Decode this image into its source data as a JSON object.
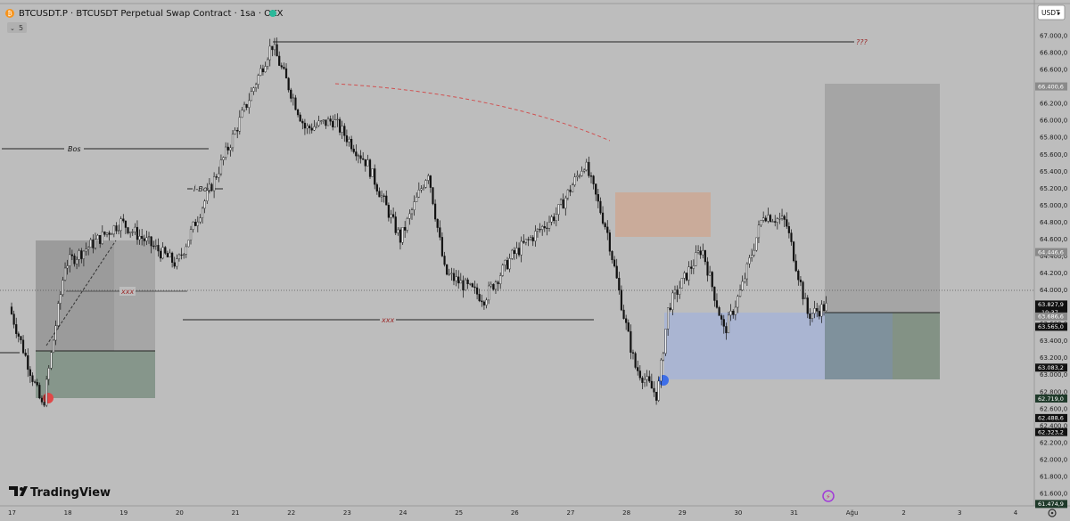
{
  "header": {
    "title": "BTCUSDT.P · BTCUSDT Perpetual Swap Contract · 1sa · OKX",
    "indicator_count": "5",
    "currency_button": "USDT",
    "logo": "TradingView"
  },
  "colors": {
    "background": "#bdbdbd",
    "candle": "#111111",
    "blue_zone": "#a9b4d3",
    "orange_zone": "#caa995",
    "green_zone": "#7f8f82",
    "gray_zone": "#a2a2a2",
    "annotation_red": "#9c2a2a"
  },
  "chart_data": {
    "type": "candlestick",
    "symbol": "BTCUSDT.P",
    "title": "BTCUSDT.P · BTCUSDT Perpetual Swap Contract · 1sa · OKX",
    "ylim": [
      61400,
      67200
    ],
    "x_categories": [
      "17",
      "18",
      "19",
      "20",
      "21",
      "22",
      "23",
      "24",
      "25",
      "26",
      "27",
      "28",
      "29",
      "30",
      "31",
      "Ağu",
      "2",
      "3",
      "4"
    ],
    "y_ticks": [
      "67.000,0",
      "66.800,0",
      "66.600,0",
      "66.400,0",
      "66.200,0",
      "66.000,0",
      "65.800,0",
      "65.600,0",
      "65.400,0",
      "65.200,0",
      "65.000,0",
      "64.800,0",
      "64.600,0",
      "64.400,0",
      "64.200,0",
      "64.000,0",
      "63.800,0",
      "63.600,0",
      "63.400,0",
      "63.200,0",
      "63.000,0",
      "62.800,0",
      "62.600,0",
      "62.400,0",
      "62.200,0",
      "62.000,0",
      "61.800,0",
      "61.600,0",
      "61.400,0"
    ],
    "price_badges": [
      {
        "label": "66.400,6",
        "value": 66400.6,
        "color": "#8a8a8a"
      },
      {
        "label": "64.446,6",
        "value": 64446.6,
        "color": "#8a8a8a"
      },
      {
        "label": "63.827,9",
        "value": 63827.9,
        "color": "#111111",
        "sub": "19:37"
      },
      {
        "label": "63.686,6",
        "value": 63686.6,
        "color": "#8a8a8a"
      },
      {
        "label": "63.565,0",
        "value": 63565.0,
        "color": "#111111"
      },
      {
        "label": "63.083,2",
        "value": 63083.2,
        "color": "#111111"
      },
      {
        "label": "62.719,0",
        "value": 62719.0,
        "color": "#1f3a2a"
      },
      {
        "label": "62.488,6",
        "value": 62488.6,
        "color": "#111111"
      },
      {
        "label": "62.323,2",
        "value": 62323.2,
        "color": "#111111"
      },
      {
        "label": "61.474,9",
        "value": 61474.9,
        "color": "#1f3a2a"
      }
    ],
    "annotations": [
      "Bos",
      "İ-Bos",
      "xxx",
      "xxx",
      "???"
    ],
    "key_points": [
      {
        "x": "17",
        "price": 63800
      },
      {
        "x": "17.6",
        "price": 62600
      },
      {
        "x": "18",
        "price": 64300
      },
      {
        "x": "19",
        "price": 64800
      },
      {
        "x": "20",
        "price": 64300
      },
      {
        "x": "21",
        "price": 65800
      },
      {
        "x": "21.7",
        "price": 66900
      },
      {
        "x": "22.3",
        "price": 65900
      },
      {
        "x": "22.8",
        "price": 66000
      },
      {
        "x": "23.4",
        "price": 65500
      },
      {
        "x": "24",
        "price": 64600
      },
      {
        "x": "24.5",
        "price": 65400
      },
      {
        "x": "24.8",
        "price": 64200
      },
      {
        "x": "25.5",
        "price": 63900
      },
      {
        "x": "26",
        "price": 64400
      },
      {
        "x": "26.8",
        "price": 64900
      },
      {
        "x": "27.3",
        "price": 65500
      },
      {
        "x": "27.7",
        "price": 64700
      },
      {
        "x": "28",
        "price": 63700
      },
      {
        "x": "28.2",
        "price": 63100
      },
      {
        "x": "28.6",
        "price": 62750
      },
      {
        "x": "28.8",
        "price": 63800
      },
      {
        "x": "29.4",
        "price": 64500
      },
      {
        "x": "29.8",
        "price": 63500
      },
      {
        "x": "30.1",
        "price": 64000
      },
      {
        "x": "30.5",
        "price": 64900
      },
      {
        "x": "30.9",
        "price": 64800
      },
      {
        "x": "31.3",
        "price": 63700
      },
      {
        "x": "31.6",
        "price": 63800
      }
    ]
  }
}
